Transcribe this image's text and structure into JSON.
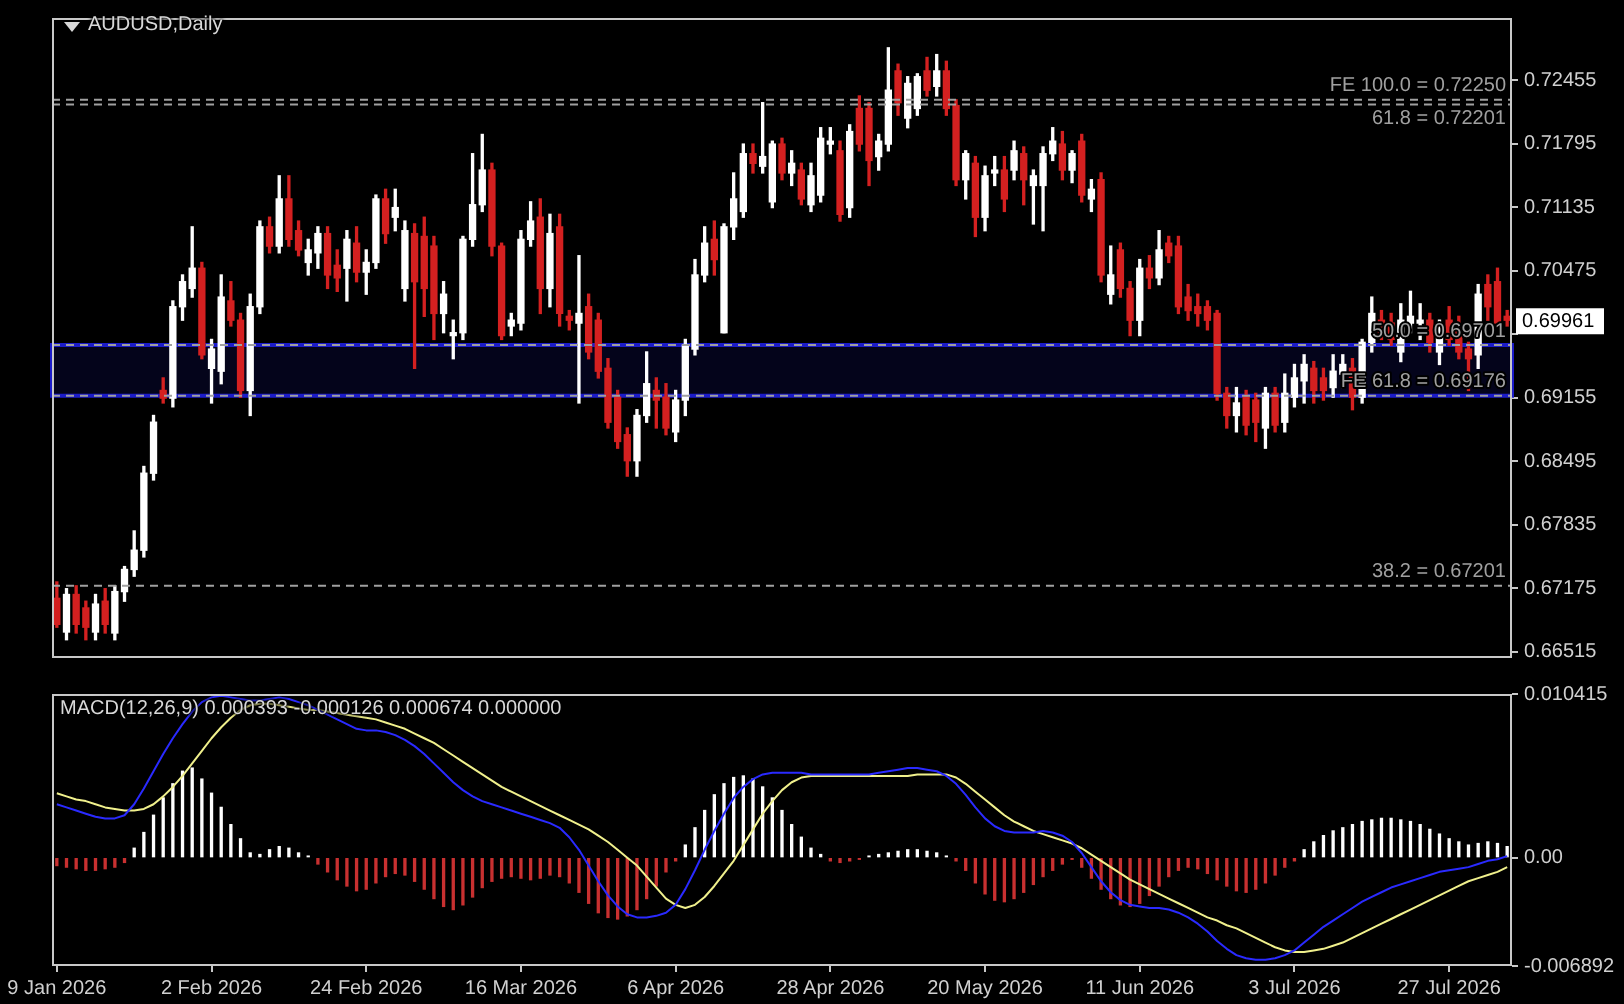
{
  "chart_data": [
    {
      "type": "candlestick",
      "title": "AUDUSD,Daily",
      "categories": [
        null,
        null,
        null,
        null,
        null,
        null,
        null,
        null,
        null,
        null,
        null,
        null,
        null,
        null,
        null,
        null,
        null,
        null,
        null,
        null,
        null,
        null,
        null,
        null,
        null,
        null,
        null,
        null,
        null,
        null,
        null,
        null,
        null,
        null,
        null,
        null,
        null,
        null,
        null,
        null,
        null,
        null,
        null,
        null,
        null,
        null,
        null,
        null,
        null,
        null,
        null,
        null,
        null,
        null,
        null,
        null,
        null,
        null,
        null,
        null,
        null,
        null,
        null,
        null,
        null,
        null,
        null,
        null,
        null,
        null,
        null,
        null,
        null,
        null,
        null,
        null,
        null,
        null,
        null,
        null,
        null,
        null,
        null,
        null,
        null,
        null,
        null,
        null,
        null,
        null,
        null,
        null,
        null,
        null,
        null,
        null,
        null,
        null,
        null,
        null,
        null,
        null,
        null,
        null,
        null,
        null,
        null,
        null,
        null,
        null,
        null,
        null,
        null,
        null,
        null,
        null,
        null,
        null,
        null,
        null,
        null,
        null,
        null,
        null,
        null,
        null,
        null,
        null,
        null,
        null,
        null,
        null,
        null,
        null,
        null,
        null,
        null,
        null,
        null,
        null,
        null,
        null,
        null,
        null,
        null,
        null,
        null,
        null,
        null,
        null,
        null
      ],
      "ohlc": [
        [
          0.6707,
          0.6724,
          0.6677,
          0.668
        ],
        [
          0.6672,
          0.6717,
          0.6664,
          0.6711
        ],
        [
          0.6711,
          0.672,
          0.6671,
          0.668
        ],
        [
          0.6697,
          0.6704,
          0.6664,
          0.6677
        ],
        [
          0.6672,
          0.6711,
          0.6664,
          0.6701
        ],
        [
          0.6704,
          0.6717,
          0.6671,
          0.668
        ],
        [
          0.6671,
          0.672,
          0.6664,
          0.6714
        ],
        [
          0.6714,
          0.674,
          0.6704,
          0.6737
        ],
        [
          0.6737,
          0.6777,
          0.673,
          0.6757
        ],
        [
          0.6757,
          0.6844,
          0.675,
          0.6837
        ],
        [
          0.6837,
          0.6897,
          0.683,
          0.689
        ],
        [
          0.6923,
          0.6936,
          0.691,
          0.6915
        ],
        [
          0.6915,
          0.7016,
          0.6906,
          0.701
        ],
        [
          0.701,
          0.7043,
          0.6996,
          0.7036
        ],
        [
          0.7029,
          0.7093,
          0.702,
          0.705
        ],
        [
          0.705,
          0.7056,
          0.6956,
          0.696
        ],
        [
          0.6946,
          0.6976,
          0.691,
          0.6966
        ],
        [
          0.6943,
          0.7043,
          0.693,
          0.702
        ],
        [
          0.7016,
          0.7036,
          0.699,
          0.6996
        ],
        [
          0.6996,
          0.7003,
          0.6916,
          0.6923
        ],
        [
          0.6923,
          0.7023,
          0.6897,
          0.701
        ],
        [
          0.701,
          0.7099,
          0.7003,
          0.7093
        ],
        [
          0.7093,
          0.7103,
          0.7066,
          0.7073
        ],
        [
          0.7073,
          0.7146,
          0.7066,
          0.7122
        ],
        [
          0.7122,
          0.7146,
          0.7073,
          0.708
        ],
        [
          0.7089,
          0.7099,
          0.7063,
          0.7069
        ],
        [
          0.7056,
          0.708,
          0.7043,
          0.7069
        ],
        [
          0.7066,
          0.7093,
          0.705,
          0.7086
        ],
        [
          0.7086,
          0.7093,
          0.7029,
          0.7043
        ],
        [
          0.7053,
          0.7069,
          0.7026,
          0.704
        ],
        [
          0.705,
          0.7089,
          0.7016,
          0.708
        ],
        [
          0.7076,
          0.7093,
          0.7036,
          0.7046
        ],
        [
          0.7046,
          0.7069,
          0.7023,
          0.7056
        ],
        [
          0.7056,
          0.7126,
          0.705,
          0.7122
        ],
        [
          0.7122,
          0.7132,
          0.7076,
          0.7086
        ],
        [
          0.7103,
          0.7132,
          0.7089,
          0.7113
        ],
        [
          0.7029,
          0.7099,
          0.7016,
          0.7089
        ],
        [
          0.7086,
          0.7096,
          0.6946,
          0.7036
        ],
        [
          0.7083,
          0.7103,
          0.7,
          0.7029
        ],
        [
          0.7073,
          0.7083,
          0.6976,
          0.7003
        ],
        [
          0.7003,
          0.7036,
          0.6983,
          0.7023
        ],
        [
          0.698,
          0.6996,
          0.6956,
          0.6983
        ],
        [
          0.6983,
          0.7083,
          0.6976,
          0.708
        ],
        [
          0.708,
          0.7169,
          0.7073,
          0.7116
        ],
        [
          0.7116,
          0.7189,
          0.7109,
          0.7152
        ],
        [
          0.7152,
          0.7159,
          0.7063,
          0.7073
        ],
        [
          0.7073,
          0.7076,
          0.6976,
          0.698
        ],
        [
          0.699,
          0.7003,
          0.698,
          0.6996
        ],
        [
          0.6993,
          0.7089,
          0.6986,
          0.708
        ],
        [
          0.708,
          0.7119,
          0.7073,
          0.7099
        ],
        [
          0.7103,
          0.7122,
          0.7003,
          0.7029
        ],
        [
          0.7029,
          0.7106,
          0.701,
          0.7086
        ],
        [
          0.7093,
          0.7106,
          0.699,
          0.7003
        ],
        [
          0.7,
          0.7006,
          0.6986,
          0.6996
        ],
        [
          0.6993,
          0.7063,
          0.691,
          0.7003
        ],
        [
          0.701,
          0.7023,
          0.6956,
          0.6963
        ],
        [
          0.6996,
          0.7003,
          0.6936,
          0.6943
        ],
        [
          0.6946,
          0.6956,
          0.6884,
          0.689
        ],
        [
          0.6916,
          0.6923,
          0.6863,
          0.687
        ],
        [
          0.6877,
          0.6884,
          0.6834,
          0.685
        ],
        [
          0.685,
          0.6903,
          0.6834,
          0.6897
        ],
        [
          0.6897,
          0.6963,
          0.689,
          0.693
        ],
        [
          0.6923,
          0.6936,
          0.6884,
          0.6913
        ],
        [
          0.6916,
          0.693,
          0.6877,
          0.6884
        ],
        [
          0.688,
          0.6923,
          0.687,
          0.6913
        ],
        [
          0.6913,
          0.6976,
          0.6897,
          0.697
        ],
        [
          0.6966,
          0.7059,
          0.696,
          0.7043
        ],
        [
          0.7043,
          0.7093,
          0.7036,
          0.7076
        ],
        [
          0.708,
          0.7099,
          0.7043,
          0.7059
        ],
        [
          0.6983,
          0.7096,
          0.6983,
          0.7093
        ],
        [
          0.7093,
          0.7149,
          0.708,
          0.7122
        ],
        [
          0.7109,
          0.7179,
          0.7103,
          0.7169
        ],
        [
          0.7169,
          0.7179,
          0.7149,
          0.7159
        ],
        [
          0.7156,
          0.7222,
          0.7149,
          0.7166
        ],
        [
          0.7119,
          0.7182,
          0.7113,
          0.7179
        ],
        [
          0.7179,
          0.7185,
          0.7142,
          0.7149
        ],
        [
          0.7149,
          0.7172,
          0.7136,
          0.7159
        ],
        [
          0.7152,
          0.7159,
          0.7116,
          0.7122
        ],
        [
          0.7116,
          0.7159,
          0.7109,
          0.7146
        ],
        [
          0.7126,
          0.7196,
          0.7119,
          0.7185
        ],
        [
          0.7179,
          0.7196,
          0.7169,
          0.7182
        ],
        [
          0.7172,
          0.7182,
          0.7099,
          0.7106
        ],
        [
          0.7113,
          0.7199,
          0.7103,
          0.7192
        ],
        [
          0.7216,
          0.7229,
          0.7172,
          0.7179
        ],
        [
          0.7216,
          0.7222,
          0.7136,
          0.7162
        ],
        [
          0.7166,
          0.7189,
          0.7152,
          0.7182
        ],
        [
          0.7179,
          0.7279,
          0.7172,
          0.7235
        ],
        [
          0.7255,
          0.7262,
          0.7209,
          0.7222
        ],
        [
          0.7206,
          0.7249,
          0.7196,
          0.7242
        ],
        [
          0.7216,
          0.7252,
          0.7209,
          0.7249
        ],
        [
          0.7255,
          0.7269,
          0.7229,
          0.7235
        ],
        [
          0.7239,
          0.7272,
          0.7229,
          0.7255
        ],
        [
          0.7255,
          0.7265,
          0.7209,
          0.7216
        ],
        [
          0.7219,
          0.7225,
          0.7136,
          0.7142
        ],
        [
          0.7142,
          0.7172,
          0.7122,
          0.7169
        ],
        [
          0.7159,
          0.7166,
          0.7083,
          0.7103
        ],
        [
          0.7103,
          0.7156,
          0.7089,
          0.7146
        ],
        [
          0.7149,
          0.7166,
          0.7136,
          0.7152
        ],
        [
          0.7152,
          0.7166,
          0.7109,
          0.7122
        ],
        [
          0.7152,
          0.7182,
          0.7142,
          0.7172
        ],
        [
          0.7169,
          0.7176,
          0.7116,
          0.7142
        ],
        [
          0.7136,
          0.7152,
          0.7096,
          0.7146
        ],
        [
          0.7136,
          0.7176,
          0.7089,
          0.7169
        ],
        [
          0.7169,
          0.7196,
          0.7162,
          0.7182
        ],
        [
          0.7179,
          0.7192,
          0.7142,
          0.7152
        ],
        [
          0.7152,
          0.7172,
          0.7139,
          0.7169
        ],
        [
          0.7182,
          0.7189,
          0.7119,
          0.7126
        ],
        [
          0.7122,
          0.7142,
          0.7109,
          0.7132
        ],
        [
          0.7142,
          0.7149,
          0.7036,
          0.7043
        ],
        [
          0.7023,
          0.7073,
          0.7013,
          0.7043
        ],
        [
          0.7069,
          0.7076,
          0.702,
          0.7029
        ],
        [
          0.7029,
          0.7036,
          0.698,
          0.6996
        ],
        [
          0.6996,
          0.7059,
          0.698,
          0.705
        ],
        [
          0.705,
          0.7063,
          0.7029,
          0.704
        ],
        [
          0.704,
          0.7089,
          0.7033,
          0.7069
        ],
        [
          0.7076,
          0.7083,
          0.7056,
          0.7063
        ],
        [
          0.7073,
          0.7083,
          0.7003,
          0.701
        ],
        [
          0.702,
          0.7033,
          0.6996,
          0.7006
        ],
        [
          0.701,
          0.7023,
          0.699,
          0.7003
        ],
        [
          0.701,
          0.7016,
          0.6986,
          0.6996
        ],
        [
          0.7003,
          0.7006,
          0.6913,
          0.692
        ],
        [
          0.692,
          0.6926,
          0.6884,
          0.6897
        ],
        [
          0.6897,
          0.6926,
          0.688,
          0.691
        ],
        [
          0.6916,
          0.6923,
          0.6877,
          0.6887
        ],
        [
          0.6913,
          0.692,
          0.687,
          0.689
        ],
        [
          0.6884,
          0.6926,
          0.6863,
          0.692
        ],
        [
          0.692,
          0.6926,
          0.688,
          0.6887
        ],
        [
          0.689,
          0.694,
          0.688,
          0.692
        ],
        [
          0.6916,
          0.695,
          0.6906,
          0.6936
        ],
        [
          0.6933,
          0.696,
          0.691,
          0.695
        ],
        [
          0.6946,
          0.6953,
          0.691,
          0.6923
        ],
        [
          0.6936,
          0.6946,
          0.6913,
          0.6923
        ],
        [
          0.6926,
          0.696,
          0.6916,
          0.6943
        ],
        [
          0.694,
          0.696,
          0.6926,
          0.695
        ],
        [
          0.6946,
          0.6956,
          0.6903,
          0.6916
        ],
        [
          0.6916,
          0.6976,
          0.691,
          0.6973
        ],
        [
          0.6973,
          0.702,
          0.6963,
          0.7003
        ],
        [
          0.6996,
          0.7006,
          0.6976,
          0.6983
        ],
        [
          0.6993,
          0.7003,
          0.697,
          0.6976
        ],
        [
          0.6963,
          0.7013,
          0.6953,
          0.6996
        ],
        [
          0.6993,
          0.7026,
          0.6983,
          0.7
        ],
        [
          0.6993,
          0.7013,
          0.6976,
          0.6996
        ],
        [
          0.6996,
          0.7003,
          0.6963,
          0.6973
        ],
        [
          0.6963,
          0.6996,
          0.695,
          0.698
        ],
        [
          0.6996,
          0.701,
          0.697,
          0.6976
        ],
        [
          0.699,
          0.7,
          0.6956,
          0.6963
        ],
        [
          0.6966,
          0.6973,
          0.6923,
          0.6956
        ],
        [
          0.696,
          0.7033,
          0.6946,
          0.7023
        ],
        [
          0.7033,
          0.7043,
          0.6996,
          0.701
        ],
        [
          0.7036,
          0.705,
          0.699,
          0.6993
        ],
        [
          0.7,
          0.7006,
          0.699,
          0.6996
        ]
      ],
      "ylim": [
        0.6645,
        0.731
      ],
      "yticks": [
        0.72455,
        0.71795,
        0.71135,
        0.70475,
        {
          "value": 0.69815,
          "label": null
        },
        0.69155,
        0.68495,
        0.67835,
        0.67175,
        0.66515
      ],
      "tick_labels": "y",
      "ref_lines": [
        {
          "axis": "y",
          "value": 0.7225,
          "label": "FE 100.0 = 0.72250",
          "color": "#a0a0a0",
          "line_style": "dashed"
        },
        {
          "axis": "y",
          "value": 0.72201,
          "label": "61.8 = 0.72201",
          "color": "#a0a0a0",
          "line_style": "dashed"
        },
        {
          "axis": "y",
          "value": 0.69701,
          "label": "50.0 = 0.69701",
          "color": "#a0a0a0",
          "line_style": "dashed"
        },
        {
          "axis": "y",
          "value": 0.69176,
          "label": "FE 61.8 = 0.69176",
          "color": "#a0a0a0",
          "line_style": "dashed"
        },
        {
          "axis": "y",
          "value": 0.67201,
          "label": "38.2 = 0.67201",
          "color": "#a0a0a0",
          "line_style": "dashed"
        }
      ],
      "bands": [
        {
          "axis": "y",
          "from": 0.69176,
          "to": 0.69701,
          "color": "#1c1cc8"
        }
      ],
      "annotations": [
        "0.69961"
      ]
    },
    {
      "type": "bar",
      "title": "MACD(12,26,9) 0.000393 -0.000126 0.000674 0.000000",
      "categories": [
        "9 Jan 2026",
        null,
        null,
        null,
        null,
        null,
        null,
        null,
        null,
        null,
        null,
        null,
        null,
        null,
        null,
        null,
        "2 Feb 2026",
        null,
        null,
        null,
        null,
        null,
        null,
        null,
        null,
        null,
        null,
        null,
        null,
        null,
        null,
        null,
        "24 Feb 2026",
        null,
        null,
        null,
        null,
        null,
        null,
        null,
        null,
        null,
        null,
        null,
        null,
        null,
        null,
        null,
        "16 Mar 2026",
        null,
        null,
        null,
        null,
        null,
        null,
        null,
        null,
        null,
        null,
        null,
        null,
        null,
        null,
        null,
        "6 Apr 2026",
        null,
        null,
        null,
        null,
        null,
        null,
        null,
        null,
        null,
        null,
        null,
        null,
        null,
        null,
        null,
        "28 Apr 2026",
        null,
        null,
        null,
        null,
        null,
        null,
        null,
        null,
        null,
        null,
        null,
        null,
        null,
        null,
        null,
        "20 May 2026",
        null,
        null,
        null,
        null,
        null,
        null,
        null,
        null,
        null,
        null,
        null,
        null,
        null,
        null,
        null,
        "11 Jun 2026",
        null,
        null,
        null,
        null,
        null,
        null,
        null,
        null,
        null,
        null,
        null,
        null,
        null,
        null,
        null,
        "3 Jul 2026",
        null,
        null,
        null,
        null,
        null,
        null,
        null,
        null,
        null,
        null,
        null,
        null,
        null,
        null,
        null,
        "27 Jul 2026",
        null,
        null,
        null,
        null,
        null,
        null
      ],
      "series": [
        {
          "type": "bar",
          "colors": [
            "#c83030",
            "#c83030",
            "#c83030",
            "#c83030",
            "#c83030",
            "#c83030",
            "#c83030",
            "#c83030",
            "#ffffff",
            "#ffffff",
            "#ffffff",
            "#ffffff",
            "#ffffff",
            "#ffffff",
            "#ffffff",
            "#ffffff",
            "#ffffff",
            "#ffffff",
            "#ffffff",
            "#ffffff",
            "#ffffff",
            "#ffffff",
            "#ffffff",
            "#ffffff",
            "#ffffff",
            "#ffffff",
            "#ffffff",
            "#c83030",
            "#c83030",
            "#c83030",
            "#c83030",
            "#c83030",
            "#c83030",
            "#c83030",
            "#c83030",
            "#c83030",
            "#c83030",
            "#c83030",
            "#c83030",
            "#c83030",
            "#c83030",
            "#c83030",
            "#c83030",
            "#c83030",
            "#c83030",
            "#c83030",
            "#c83030",
            "#c83030",
            "#c83030",
            "#c83030",
            "#c83030",
            "#c83030",
            "#c83030",
            "#c83030",
            "#c83030",
            "#c83030",
            "#c83030",
            "#c83030",
            "#c83030",
            "#c83030",
            "#c83030",
            "#c83030",
            "#c83030",
            "#c83030",
            "#c83030",
            "#ffffff",
            "#ffffff",
            "#ffffff",
            "#ffffff",
            "#ffffff",
            "#ffffff",
            "#ffffff",
            "#ffffff",
            "#ffffff",
            "#ffffff",
            "#ffffff",
            "#ffffff",
            "#ffffff",
            "#ffffff",
            "#ffffff",
            "#c83030",
            "#c83030",
            "#c83030",
            "#c83030",
            "#ffffff",
            "#ffffff",
            "#ffffff",
            "#ffffff",
            "#ffffff",
            "#ffffff",
            "#ffffff",
            "#ffffff",
            "#ffffff",
            "#c83030",
            "#c83030",
            "#c83030",
            "#c83030",
            "#c83030",
            "#c83030",
            "#c83030",
            "#c83030",
            "#c83030",
            "#c83030",
            "#c83030",
            "#c83030",
            "#c83030",
            "#c83030",
            "#c83030",
            "#c83030",
            "#c83030",
            "#c83030",
            "#c83030",
            "#c83030",
            "#c83030",
            "#c83030",
            "#c83030",
            "#c83030",
            "#c83030",
            "#c83030",
            "#c83030",
            "#c83030",
            "#c83030",
            "#c83030",
            "#c83030",
            "#c83030",
            "#c83030",
            "#c83030",
            "#c83030",
            "#c83030",
            "#ffffff",
            "#ffffff",
            "#ffffff",
            "#ffffff",
            "#ffffff",
            "#ffffff",
            "#ffffff",
            "#ffffff",
            "#ffffff",
            "#ffffff",
            "#ffffff",
            "#ffffff",
            "#ffffff",
            "#ffffff",
            "#ffffff",
            "#ffffff",
            "#ffffff",
            "#ffffff",
            "#ffffff",
            "#ffffff",
            "#ffffff",
            "#ffffff"
          ],
          "values": [
            -0.0005,
            -0.0006,
            -0.0007,
            -0.0008,
            -0.0008,
            -0.0007,
            -0.0006,
            -0.0003,
            0.0006,
            0.0016,
            0.0027,
            0.0038,
            0.0047,
            0.0055,
            0.0057,
            0.005,
            0.0041,
            0.0032,
            0.0021,
            0.0012,
            0.0003,
            0.0002,
            0.0005,
            0.0007,
            0.0006,
            0.0003,
            0.0001,
            -0.0004,
            -0.0009,
            -0.0014,
            -0.0018,
            -0.0021,
            -0.002,
            -0.0016,
            -0.0012,
            -0.001,
            -0.0011,
            -0.0015,
            -0.002,
            -0.0026,
            -0.0031,
            -0.0033,
            -0.003,
            -0.0025,
            -0.0019,
            -0.0015,
            -0.0013,
            -0.0012,
            -0.0013,
            -0.0014,
            -0.0013,
            -0.0011,
            -0.0012,
            -0.0016,
            -0.0022,
            -0.0029,
            -0.0035,
            -0.0038,
            -0.0039,
            -0.0037,
            -0.0033,
            -0.0026,
            -0.0018,
            -0.0009,
            -0.0002,
            0.0008,
            0.0019,
            0.003,
            0.004,
            0.0047,
            0.0051,
            0.0052,
            0.005,
            0.0045,
            0.0038,
            0.003,
            0.0021,
            0.0013,
            0.0006,
            0.0002,
            -0.0002,
            -0.0003,
            -0.0002,
            -0.0001,
            0.0001,
            0.0002,
            0.0003,
            0.0004,
            0.0005,
            0.0005,
            0.0004,
            0.0003,
            0.0001,
            -0.0002,
            -0.0008,
            -0.0016,
            -0.0023,
            -0.0027,
            -0.0028,
            -0.0026,
            -0.0022,
            -0.0017,
            -0.0012,
            -0.0008,
            -0.0004,
            -0.0001,
            -0.0006,
            -0.0013,
            -0.002,
            -0.0026,
            -0.003,
            -0.0031,
            -0.0029,
            -0.0024,
            -0.0018,
            -0.0012,
            -0.0008,
            -0.0006,
            -0.0007,
            -0.001,
            -0.0014,
            -0.0018,
            -0.0021,
            -0.0022,
            -0.002,
            -0.0016,
            -0.0011,
            -0.0006,
            -0.0002,
            0.0005,
            0.001,
            0.0014,
            0.0017,
            0.0019,
            0.0021,
            0.0023,
            0.0024,
            0.0025,
            0.0025,
            0.0024,
            0.0023,
            0.0021,
            0.0018,
            0.0015,
            0.0012,
            0.001,
            0.0008,
            0.0009,
            0.001,
            0.0009,
            0.0007
          ]
        },
        {
          "type": "line",
          "color": "#2a2aff",
          "values": [
            0.0034,
            0.0032,
            0.003,
            0.0028,
            0.0026,
            0.0025,
            0.0025,
            0.0027,
            0.0034,
            0.0044,
            0.0055,
            0.0066,
            0.0076,
            0.0085,
            0.0093,
            0.0099,
            0.0102,
            0.0103,
            0.0102,
            0.0101,
            0.01,
            0.01,
            0.0101,
            0.0102,
            0.0101,
            0.0099,
            0.0097,
            0.0094,
            0.0091,
            0.0088,
            0.0085,
            0.0082,
            0.0081,
            0.0081,
            0.008,
            0.0078,
            0.0075,
            0.0071,
            0.0066,
            0.006,
            0.0054,
            0.0048,
            0.0043,
            0.0039,
            0.0036,
            0.0034,
            0.0032,
            0.003,
            0.0028,
            0.0026,
            0.0024,
            0.0022,
            0.0019,
            0.0013,
            0.0005,
            -0.0005,
            -0.0015,
            -0.0024,
            -0.0031,
            -0.0036,
            -0.0038,
            -0.0038,
            -0.0037,
            -0.0035,
            -0.003,
            -0.002,
            -0.0008,
            0.0005,
            0.0017,
            0.0028,
            0.0038,
            0.0045,
            0.005,
            0.0053,
            0.0054,
            0.0054,
            0.0054,
            0.0054,
            0.0053,
            0.0053,
            0.0053,
            0.0053,
            0.0053,
            0.0053,
            0.0053,
            0.0054,
            0.0055,
            0.0056,
            0.0057,
            0.0057,
            0.0056,
            0.0055,
            0.0052,
            0.0047,
            0.004,
            0.0032,
            0.0025,
            0.002,
            0.0017,
            0.0016,
            0.0016,
            0.0016,
            0.0017,
            0.0016,
            0.0014,
            0.001,
            0.0003,
            -0.0006,
            -0.0015,
            -0.0022,
            -0.0027,
            -0.003,
            -0.0031,
            -0.0032,
            -0.0032,
            -0.0033,
            -0.0035,
            -0.0038,
            -0.0042,
            -0.0047,
            -0.0053,
            -0.0058,
            -0.0062,
            -0.0064,
            -0.0065,
            -0.0065,
            -0.0064,
            -0.0062,
            -0.0059,
            -0.0054,
            -0.0049,
            -0.0044,
            -0.004,
            -0.0036,
            -0.0032,
            -0.0028,
            -0.0025,
            -0.0022,
            -0.0019,
            -0.0017,
            -0.0015,
            -0.0013,
            -0.0011,
            -0.0009,
            -0.0008,
            -0.0007,
            -0.0006,
            -0.0004,
            -0.0002,
            -0.0001,
            0.0001
          ]
        },
        {
          "type": "line",
          "color": "#f0f08c",
          "values": [
            0.0041,
            0.0039,
            0.0037,
            0.0036,
            0.0034,
            0.0032,
            0.0031,
            0.003,
            0.003,
            0.0031,
            0.0034,
            0.0039,
            0.0045,
            0.0052,
            0.006,
            0.0068,
            0.0076,
            0.0083,
            0.0089,
            0.0094,
            0.0097,
            0.0098,
            0.0098,
            0.0097,
            0.0096,
            0.0095,
            0.0094,
            0.0094,
            0.0093,
            0.0092,
            0.0091,
            0.009,
            0.0089,
            0.0088,
            0.0086,
            0.0084,
            0.0082,
            0.0079,
            0.0076,
            0.0073,
            0.0069,
            0.0065,
            0.0061,
            0.0057,
            0.0053,
            0.0049,
            0.0045,
            0.0042,
            0.0039,
            0.0036,
            0.0033,
            0.003,
            0.0027,
            0.0024,
            0.0021,
            0.0018,
            0.0014,
            0.001,
            0.0005,
            0.0,
            -0.0005,
            -0.0012,
            -0.0019,
            -0.0026,
            -0.003,
            -0.0032,
            -0.003,
            -0.0025,
            -0.0018,
            -0.001,
            -0.0002,
            0.0008,
            0.0018,
            0.0028,
            0.0036,
            0.0043,
            0.0048,
            0.0051,
            0.0052,
            0.0052,
            0.0052,
            0.0052,
            0.0052,
            0.0052,
            0.0052,
            0.0052,
            0.0052,
            0.0052,
            0.0052,
            0.0053,
            0.0053,
            0.0053,
            0.0053,
            0.0051,
            0.0047,
            0.0042,
            0.0037,
            0.0032,
            0.0027,
            0.0023,
            0.002,
            0.0017,
            0.0015,
            0.0013,
            0.0011,
            0.0009,
            0.0006,
            0.0002,
            -0.0002,
            -0.0006,
            -0.001,
            -0.0014,
            -0.0017,
            -0.002,
            -0.0023,
            -0.0026,
            -0.0029,
            -0.0032,
            -0.0035,
            -0.0038,
            -0.004,
            -0.0043,
            -0.0045,
            -0.0048,
            -0.0051,
            -0.0054,
            -0.0057,
            -0.0059,
            -0.006,
            -0.006,
            -0.0059,
            -0.0058,
            -0.0056,
            -0.0054,
            -0.0051,
            -0.0048,
            -0.0045,
            -0.0042,
            -0.0039,
            -0.0036,
            -0.0033,
            -0.003,
            -0.0027,
            -0.0024,
            -0.0021,
            -0.0018,
            -0.0015,
            -0.0013,
            -0.0011,
            -0.0009,
            -0.0006
          ]
        }
      ],
      "ylim": [
        -0.006892,
        0.010415
      ],
      "yticks": [
        0.010415,
        {
          "value": 0,
          "label": "0.00"
        },
        -0.006892
      ]
    }
  ]
}
